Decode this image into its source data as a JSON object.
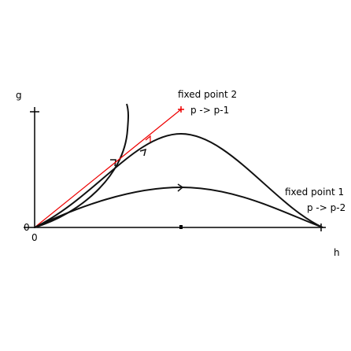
{
  "axes": {
    "y_label": "g",
    "x_label": "h",
    "origin_y": "0",
    "origin_x": "0"
  },
  "fixed_points": [
    {
      "label": "fixed point 2",
      "map": "p -> p-1"
    },
    {
      "label": "fixed point 1",
      "map": "p -> p-2"
    }
  ]
}
